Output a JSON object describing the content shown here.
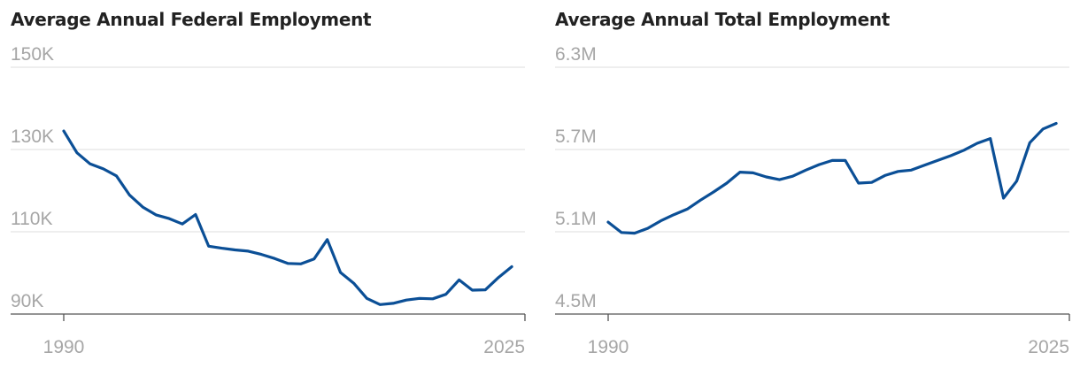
{
  "chart_data": [
    {
      "type": "line",
      "title": "Average Annual Federal Employment",
      "xlabel": "",
      "ylabel": "",
      "ylim": [
        90000,
        150000
      ],
      "xlim": [
        1990,
        2025
      ],
      "y_ticks": [
        {
          "value": 150000,
          "label": "150K"
        },
        {
          "value": 130000,
          "label": 130000,
          "label_text": "130K"
        },
        {
          "value": 110000,
          "label_text": "110K"
        },
        {
          "value": 90000,
          "label_text": "90K"
        }
      ],
      "x_tick_labels": [
        "1990",
        "2025"
      ],
      "color": "#0b4f96",
      "series": [
        {
          "name": "Federal employment",
          "x": [
            1990,
            1991,
            1992,
            1993,
            1994,
            1995,
            1996,
            1997,
            1998,
            1999,
            2000,
            2001,
            2002,
            2003,
            2004,
            2005,
            2006,
            2007,
            2008,
            2009,
            2010,
            2011,
            2012,
            2013,
            2014,
            2015,
            2016,
            2017,
            2018,
            2019,
            2020,
            2021,
            2022,
            2023,
            2024,
            2025
          ],
          "values": [
            134500,
            129200,
            126500,
            125300,
            123600,
            118900,
            116000,
            114100,
            113200,
            111900,
            114200,
            106500,
            106000,
            105600,
            105300,
            104500,
            103500,
            102300,
            102200,
            103400,
            108100,
            100100,
            97500,
            93800,
            92300,
            92600,
            93400,
            93800,
            93700,
            94800,
            98300,
            95800,
            95900,
            98900,
            101500,
            null
          ]
        }
      ]
    },
    {
      "type": "line",
      "title": "Average Annual Total Employment",
      "xlabel": "",
      "ylabel": "",
      "ylim": [
        4500000,
        6300000
      ],
      "xlim": [
        1990,
        2025
      ],
      "y_ticks": [
        {
          "value": 6300000,
          "label_text": "6.3M"
        },
        {
          "value": 5700000,
          "label_text": "5.7M"
        },
        {
          "value": 5100000,
          "label_text": "5.1M"
        },
        {
          "value": 4500000,
          "label_text": "4.5M"
        }
      ],
      "x_tick_labels": [
        "1990",
        "2025"
      ],
      "color": "#0b4f96",
      "series": [
        {
          "name": "Total employment",
          "x": [
            1990,
            1991,
            1992,
            1993,
            1994,
            1995,
            1996,
            1997,
            1998,
            1999,
            2000,
            2001,
            2002,
            2003,
            2004,
            2005,
            2006,
            2007,
            2008,
            2009,
            2010,
            2011,
            2012,
            2013,
            2014,
            2015,
            2016,
            2017,
            2018,
            2019,
            2020,
            2021,
            2022,
            2023,
            2024,
            2025
          ],
          "values": [
            5170000,
            5095000,
            5090000,
            5125000,
            5180000,
            5225000,
            5265000,
            5330000,
            5390000,
            5455000,
            5535000,
            5530000,
            5500000,
            5480000,
            5505000,
            5550000,
            5590000,
            5620000,
            5620000,
            5455000,
            5460000,
            5510000,
            5540000,
            5550000,
            5585000,
            5620000,
            5655000,
            5695000,
            5745000,
            5780000,
            5345000,
            5470000,
            5750000,
            5850000,
            5890000,
            null
          ]
        }
      ]
    }
  ]
}
